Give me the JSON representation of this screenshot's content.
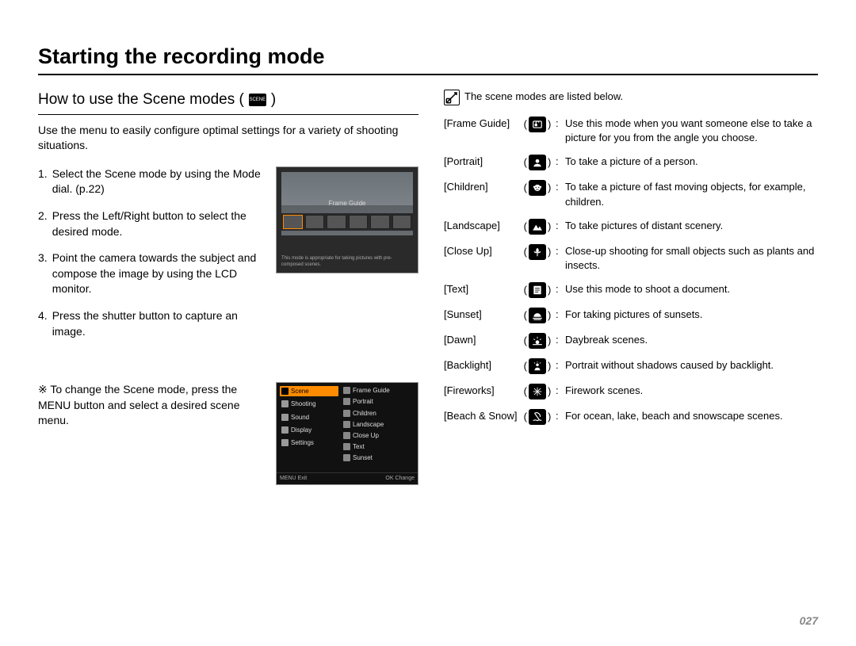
{
  "page_title": "Starting the recording mode",
  "page_number": "027",
  "left": {
    "subheading": "How to use the Scene modes (",
    "subheading_close": ")",
    "intro": "Use the menu to easily configure optimal settings for a variety of shooting situations.",
    "steps": [
      {
        "n": "1.",
        "t": "Select the Scene mode by using the Mode dial. (p.22)"
      },
      {
        "n": "2.",
        "t": "Press the Left/Right button to select the desired mode."
      },
      {
        "n": "3.",
        "t": "Point the camera towards the subject and compose the image by using the LCD monitor."
      },
      {
        "n": "4.",
        "t": "Press the shutter button to capture an image."
      }
    ],
    "lcd": {
      "label": "Frame Guide",
      "caption": "This mode is appropriate for taking pictures with pre-composed scenes."
    },
    "note": "※ To change the Scene mode, press the MENU button and select a desired scene menu.",
    "menu": {
      "left_items": [
        "Scene",
        "Shooting",
        "Sound",
        "Display",
        "Settings"
      ],
      "right_items": [
        "Frame Guide",
        "Portrait",
        "Children",
        "Landscape",
        "Close Up",
        "Text",
        "Sunset"
      ],
      "foot_left": "Exit",
      "foot_left_key": "MENU",
      "foot_right": "Change",
      "foot_right_key": "OK"
    }
  },
  "right": {
    "intro": "The scene modes are listed below.",
    "modes": [
      {
        "label": "[Frame Guide]",
        "desc": "Use this mode when you want someone else to take a picture for you from the angle you choose.",
        "icon": "frame"
      },
      {
        "label": "[Portrait]",
        "desc": "To take a picture of a person.",
        "icon": "portrait"
      },
      {
        "label": "[Children]",
        "desc": "To take a picture of fast moving objects, for example, children.",
        "icon": "children"
      },
      {
        "label": "[Landscape]",
        "desc": "To take pictures of distant scenery.",
        "icon": "landscape"
      },
      {
        "label": "[Close Up]",
        "desc": "Close-up shooting for small objects such as plants and insects.",
        "icon": "closeup"
      },
      {
        "label": "[Text]",
        "desc": "Use this mode to shoot a document.",
        "icon": "text"
      },
      {
        "label": "[Sunset]",
        "desc": "For taking pictures of sunsets.",
        "icon": "sunset"
      },
      {
        "label": "[Dawn]",
        "desc": "Daybreak scenes.",
        "icon": "dawn"
      },
      {
        "label": "[Backlight]",
        "desc": "Portrait without shadows caused by backlight.",
        "icon": "backlight"
      },
      {
        "label": "[Fireworks]",
        "desc": "Firework scenes.",
        "icon": "fireworks"
      },
      {
        "label": "[Beach & Snow]",
        "desc": "For ocean, lake, beach and snowscape scenes.",
        "icon": "beach"
      }
    ]
  },
  "colors": {
    "text": "#000000",
    "page_bg": "#ffffff",
    "accent": "#ff8c00",
    "lcd_bg": "#2a2a2a",
    "pagenum": "#888888"
  }
}
